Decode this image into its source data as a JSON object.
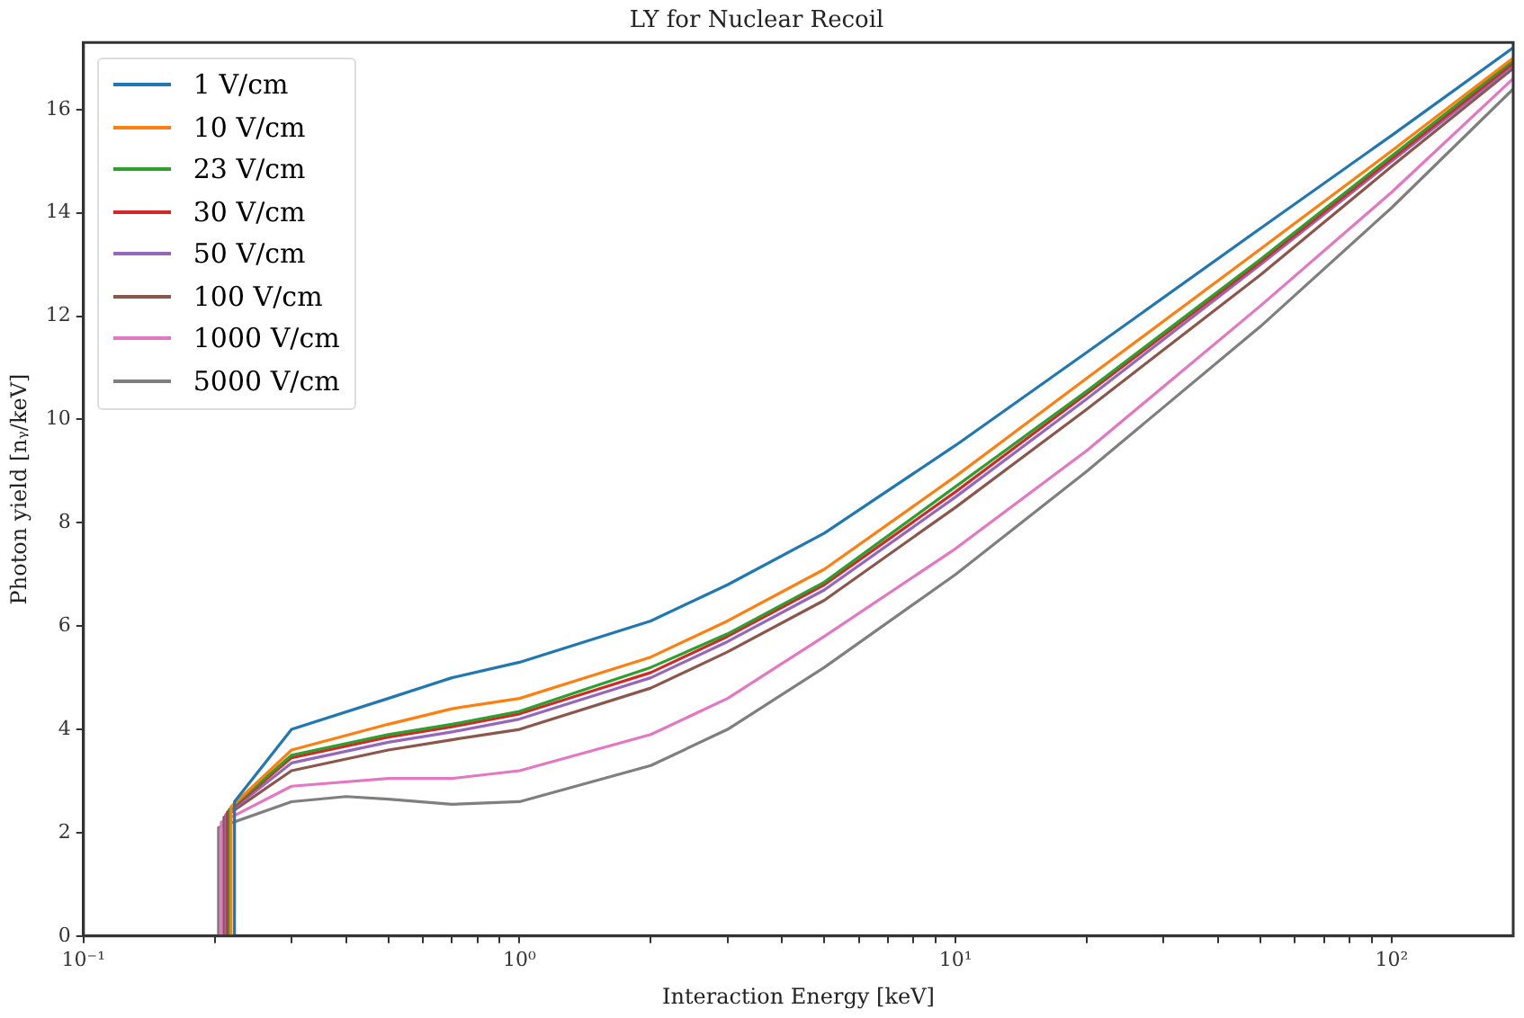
{
  "chart_data": {
    "type": "line",
    "title": "LY for Nuclear Recoil",
    "xlabel": "Interaction Energy [keV]",
    "ylabel": "Photon yield [nᵧ/keV]",
    "log": "x",
    "grid": false,
    "legend": "top left",
    "marker": "none",
    "line_style": "solid",
    "xlim": [
      0.1,
      190
    ],
    "ylim": [
      0,
      17.3
    ],
    "xticks": [
      {
        "value": 0.1,
        "label": "10⁻¹"
      },
      {
        "value": 0.2,
        "label": null
      },
      {
        "value": 0.3,
        "label": null
      },
      {
        "value": 0.4,
        "label": null
      },
      {
        "value": 0.5,
        "label": null
      },
      {
        "value": 0.6,
        "label": null
      },
      {
        "value": 0.7,
        "label": null
      },
      {
        "value": 0.8,
        "label": null
      },
      {
        "value": 0.9,
        "label": null
      },
      {
        "value": 1,
        "label": "10⁰"
      },
      {
        "value": 2,
        "label": null
      },
      {
        "value": 3,
        "label": null
      },
      {
        "value": 4,
        "label": null
      },
      {
        "value": 5,
        "label": null
      },
      {
        "value": 6,
        "label": null
      },
      {
        "value": 7,
        "label": null
      },
      {
        "value": 8,
        "label": null
      },
      {
        "value": 9,
        "label": null
      },
      {
        "value": 10,
        "label": "10¹"
      },
      {
        "value": 20,
        "label": null
      },
      {
        "value": 30,
        "label": null
      },
      {
        "value": 40,
        "label": null
      },
      {
        "value": 50,
        "label": null
      },
      {
        "value": 60,
        "label": null
      },
      {
        "value": 70,
        "label": null
      },
      {
        "value": 80,
        "label": null
      },
      {
        "value": 90,
        "label": null
      },
      {
        "value": 100,
        "label": "10²"
      }
    ],
    "yticks": [
      0,
      2,
      4,
      6,
      8,
      10,
      12,
      14,
      16
    ],
    "series": [
      {
        "name": "1 V/cm",
        "color": "#1f77b4",
        "x": [
          0.222,
          0.222,
          0.3,
          0.5,
          0.7,
          1,
          2,
          3,
          5,
          10,
          20,
          50,
          100,
          190
        ],
        "values": [
          0,
          2.6,
          4.0,
          4.6,
          5.0,
          5.3,
          6.1,
          6.8,
          7.8,
          9.5,
          11.3,
          13.7,
          15.5,
          17.2
        ]
      },
      {
        "name": "10 V/cm",
        "color": "#ff7f0e",
        "x": [
          0.218,
          0.218,
          0.3,
          0.5,
          0.7,
          1,
          2,
          3,
          5,
          10,
          20,
          50,
          100,
          190
        ],
        "values": [
          0,
          2.5,
          3.6,
          4.1,
          4.4,
          4.6,
          5.4,
          6.1,
          7.1,
          8.9,
          10.8,
          13.3,
          15.2,
          17.0
        ]
      },
      {
        "name": "23 V/cm",
        "color": "#2ca02c",
        "x": [
          0.216,
          0.216,
          0.3,
          0.5,
          0.7,
          1,
          2,
          3,
          5,
          10,
          20,
          50,
          100,
          190
        ],
        "values": [
          0,
          2.45,
          3.5,
          3.9,
          4.1,
          4.35,
          5.2,
          5.85,
          6.85,
          8.7,
          10.55,
          13.1,
          15.1,
          16.95
        ]
      },
      {
        "name": "30 V/cm",
        "color": "#d62728",
        "x": [
          0.214,
          0.214,
          0.3,
          0.5,
          0.7,
          1,
          2,
          3,
          5,
          10,
          20,
          50,
          100,
          190
        ],
        "values": [
          0,
          2.4,
          3.45,
          3.85,
          4.05,
          4.3,
          5.1,
          5.8,
          6.8,
          8.6,
          10.5,
          13.05,
          15.05,
          16.9
        ]
      },
      {
        "name": "50 V/cm",
        "color": "#9467bd",
        "x": [
          0.212,
          0.212,
          0.3,
          0.5,
          0.7,
          1,
          2,
          3,
          5,
          10,
          20,
          50,
          100,
          190
        ],
        "values": [
          0,
          2.35,
          3.35,
          3.75,
          3.95,
          4.2,
          5.0,
          5.7,
          6.7,
          8.5,
          10.4,
          13.0,
          15.0,
          16.85
        ]
      },
      {
        "name": "100 V/cm",
        "color": "#8c564b",
        "x": [
          0.21,
          0.21,
          0.3,
          0.5,
          0.7,
          1,
          2,
          3,
          5,
          10,
          20,
          50,
          100,
          190
        ],
        "values": [
          0,
          2.3,
          3.2,
          3.6,
          3.8,
          4.0,
          4.8,
          5.5,
          6.5,
          8.3,
          10.2,
          12.8,
          14.9,
          16.8
        ]
      },
      {
        "name": "1000 V/cm",
        "color": "#e377c2",
        "x": [
          0.207,
          0.207,
          0.3,
          0.5,
          0.7,
          1,
          2,
          3,
          5,
          10,
          20,
          50,
          100,
          190
        ],
        "values": [
          0,
          2.2,
          2.9,
          3.05,
          3.05,
          3.2,
          3.9,
          4.6,
          5.8,
          7.5,
          9.4,
          12.2,
          14.4,
          16.6
        ]
      },
      {
        "name": "5000 V/cm",
        "color": "#7f7f7f",
        "x": [
          0.1,
          0.204,
          0.204,
          0.3,
          0.4,
          0.5,
          0.7,
          1,
          2,
          3,
          5,
          10,
          20,
          50,
          100,
          190
        ],
        "values": [
          0,
          0,
          2.1,
          2.6,
          2.7,
          2.65,
          2.55,
          2.6,
          3.3,
          4.0,
          5.2,
          7.0,
          9.0,
          11.8,
          14.1,
          16.4
        ]
      }
    ]
  }
}
